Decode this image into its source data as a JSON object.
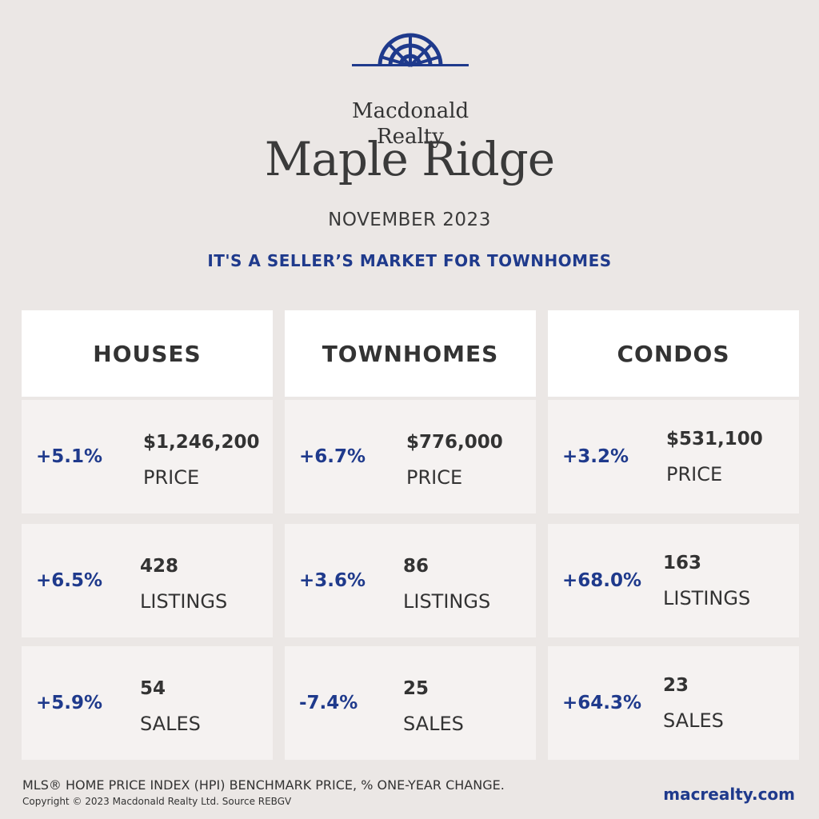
{
  "brand": {
    "logo_icon": "macdonald-realty-logo-icon",
    "name_line1": "Macdonald",
    "name_line2": "Realty",
    "colors": {
      "navy": "#1f3a8c",
      "text": "#333333",
      "background": "#ebe7e5",
      "card": "#f5f2f1",
      "header_card": "#ffffff"
    }
  },
  "title": "Maple Ridge",
  "period": "NOVEMBER 2023",
  "headline": "IT'S A SELLER’S MARKET FOR TOWNHOMES",
  "columns": [
    {
      "title": "HOUSES",
      "stats": [
        {
          "change": "+5.1%",
          "value": "$1,246,200",
          "label": "PRICE"
        },
        {
          "change": "+6.5%",
          "value": "428",
          "label": "LISTINGS"
        },
        {
          "change": "+5.9%",
          "value": "54",
          "label": "SALES"
        }
      ]
    },
    {
      "title": "TOWNHOMES",
      "stats": [
        {
          "change": "+6.7%",
          "value": "$776,000",
          "label": "PRICE"
        },
        {
          "change": "+3.6%",
          "value": "86",
          "label": "LISTINGS"
        },
        {
          "change": "-7.4%",
          "value": "25",
          "label": "SALES"
        }
      ]
    },
    {
      "title": "CONDOS",
      "stats": [
        {
          "change": "+3.2%",
          "value": "$531,100",
          "label": "PRICE"
        },
        {
          "change": "+68.0%",
          "value": "163",
          "label": "LISTINGS"
        },
        {
          "change": "+64.3%",
          "value": "23",
          "label": "SALES"
        }
      ]
    }
  ],
  "footer": {
    "note": "MLS® HOME PRICE INDEX (HPI) BENCHMARK PRICE, % ONE-YEAR CHANGE.",
    "copyright": "Copyright © 2023 Macdonald Realty Ltd. Source REBGV",
    "website": "macrealty.com"
  }
}
